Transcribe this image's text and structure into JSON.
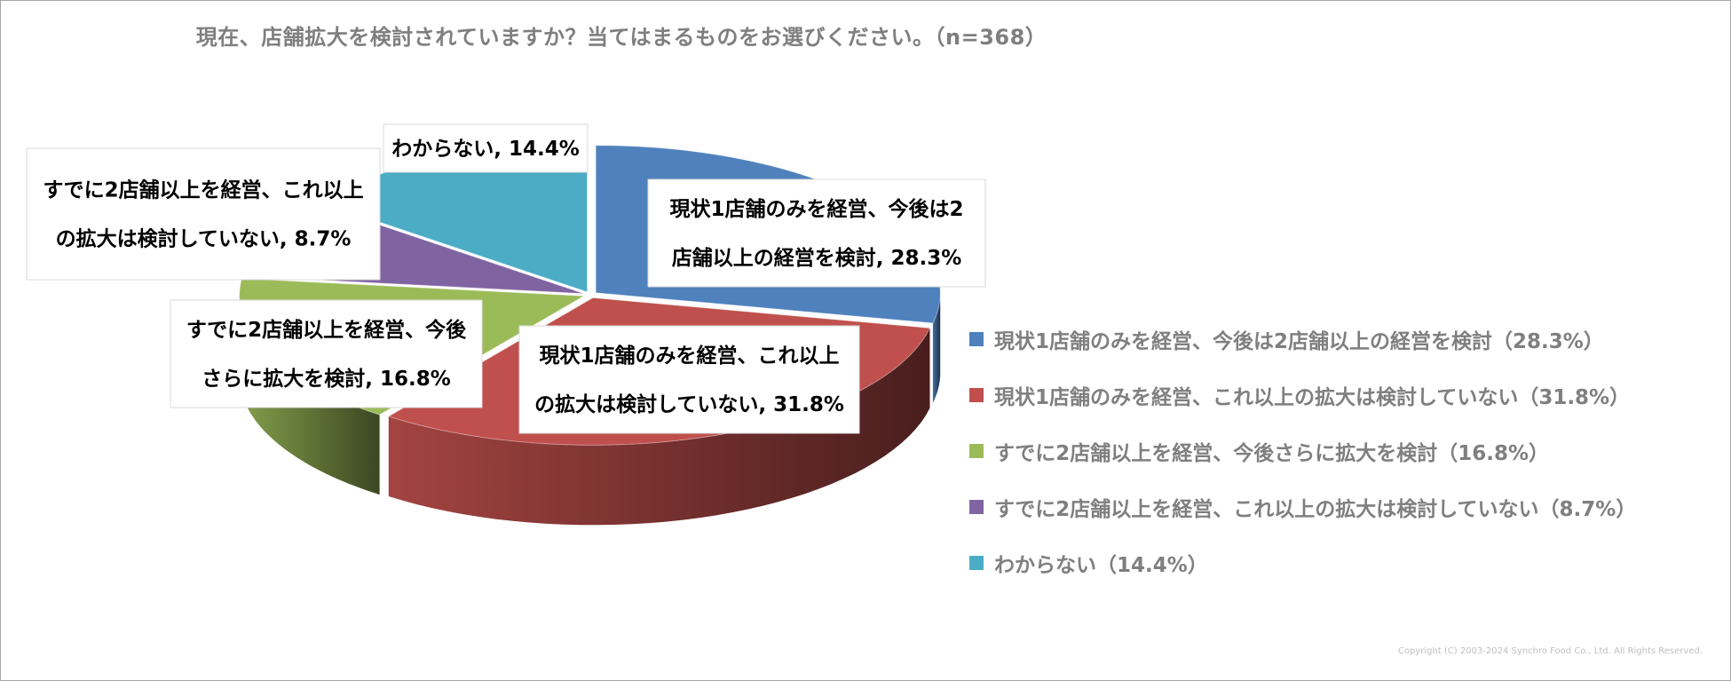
{
  "title": "現在、店舗拡大を検討されていますか？当てはまるものをお選びください。（n=368）",
  "chart_data": {
    "type": "pie",
    "title": "現在、店舗拡大を検討されていますか？当てはまるものをお選びください。（n=368）",
    "style": "3d-exploded-pie",
    "legend_position": "right",
    "slices": [
      {
        "label": "現状1店舗のみを経営、今後は2店舗以上の経営を検討",
        "value": 28.3,
        "color": "#4f81bd",
        "data_label_lines": [
          "現状1店舗のみを経営、今後は2",
          "店舗以上の経営を検討, 28.3%"
        ],
        "legend_label": "現状1店舗のみを経営、今後は2店舗以上の経営を検討（28.3%）"
      },
      {
        "label": "現状1店舗のみを経営、これ以上の拡大は検討していない",
        "value": 31.8,
        "color": "#c0504d",
        "data_label_lines": [
          "現状1店舗のみを経営、これ以上",
          "の拡大は検討していない, 31.8%"
        ],
        "legend_label": "現状1店舗のみを経営、これ以上の拡大は検討していない（31.8%）"
      },
      {
        "label": "すでに2店舗以上を経営、今後さらに拡大を検討",
        "value": 16.8,
        "color": "#9bbb59",
        "data_label_lines": [
          "すでに2店舗以上を経営、今後",
          "さらに拡大を検討, 16.8%"
        ],
        "legend_label": "すでに2店舗以上を経営、今後さらに拡大を検討（16.8%）"
      },
      {
        "label": "すでに2店舗以上を経営、これ以上の拡大は検討していない",
        "value": 8.7,
        "color": "#8064a2",
        "data_label_lines": [
          "すでに2店舗以上を経営、これ以上",
          "の拡大は検討していない, 8.7%"
        ],
        "legend_label": "すでに2店舗以上を経営、これ以上の拡大は検討していない（8.7%）"
      },
      {
        "label": "わからない",
        "value": 14.4,
        "color": "#4bacc6",
        "data_label_lines": [
          "わからない, 14.4%"
        ],
        "legend_label": "わからない（14.4%）"
      }
    ]
  },
  "copyright": "Copyright (C) 2003-2024 Synchro Food Co., Ltd. All Rights Reserved."
}
